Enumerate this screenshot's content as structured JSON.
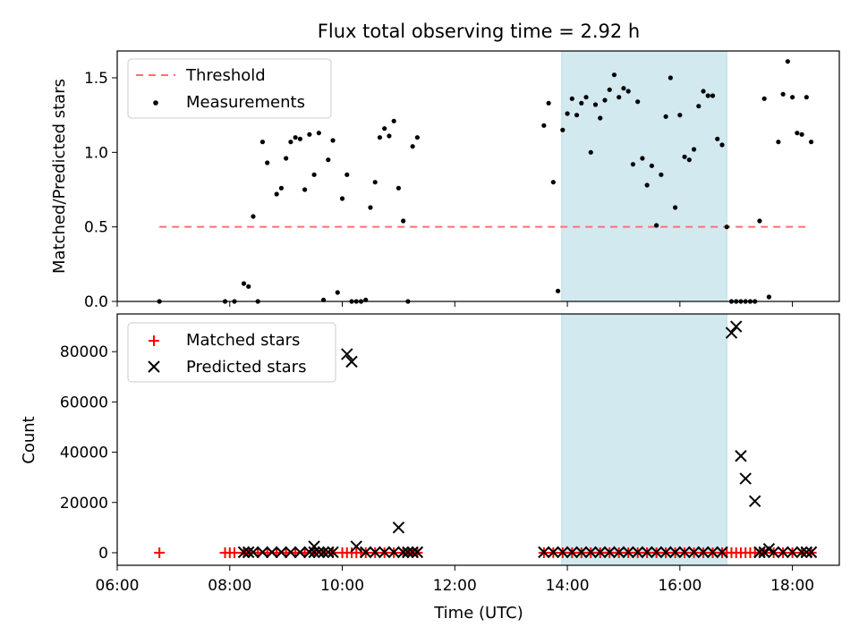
{
  "chart_data": [
    {
      "type": "scatter",
      "title": "Flux total observing time = 2.92 h",
      "xlabel": "",
      "ylabel": "Matched/Predicted stars",
      "xlim": [
        "06:00",
        "18:50"
      ],
      "ylim": [
        0,
        1.68
      ],
      "yticks": [
        "0.0",
        "0.5",
        "1.0",
        "1.5"
      ],
      "legend_position": "upper-left",
      "shaded_interval": {
        "start": "13:54",
        "end": "16:50",
        "color": "#d2e9f0"
      },
      "threshold": {
        "name": "Threshold",
        "value": 0.5,
        "x_start": "06:45",
        "x_end": "18:15",
        "color": "#ff7070"
      },
      "series": [
        {
          "name": "Measurements",
          "color": "#000000",
          "points": [
            [
              "06:45",
              0.0
            ],
            [
              "07:55",
              0.0
            ],
            [
              "08:05",
              0.0
            ],
            [
              "08:15",
              0.12
            ],
            [
              "08:20",
              0.1
            ],
            [
              "08:25",
              0.57
            ],
            [
              "08:30",
              0.0
            ],
            [
              "08:35",
              1.07
            ],
            [
              "08:40",
              0.93
            ],
            [
              "08:50",
              0.72
            ],
            [
              "08:55",
              0.76
            ],
            [
              "09:00",
              0.96
            ],
            [
              "09:05",
              1.07
            ],
            [
              "09:10",
              1.1
            ],
            [
              "09:15",
              1.09
            ],
            [
              "09:20",
              0.75
            ],
            [
              "09:25",
              1.12
            ],
            [
              "09:30",
              0.85
            ],
            [
              "09:35",
              1.13
            ],
            [
              "09:40",
              0.01
            ],
            [
              "09:45",
              0.95
            ],
            [
              "09:50",
              1.08
            ],
            [
              "09:55",
              0.06
            ],
            [
              "10:00",
              0.69
            ],
            [
              "10:05",
              0.85
            ],
            [
              "10:10",
              0.0
            ],
            [
              "10:15",
              0.0
            ],
            [
              "10:20",
              0.0
            ],
            [
              "10:25",
              0.01
            ],
            [
              "10:30",
              0.63
            ],
            [
              "10:35",
              0.8
            ],
            [
              "10:40",
              1.1
            ],
            [
              "10:45",
              1.16
            ],
            [
              "10:50",
              1.11
            ],
            [
              "10:55",
              1.21
            ],
            [
              "11:00",
              0.76
            ],
            [
              "11:05",
              0.54
            ],
            [
              "11:10",
              0.0
            ],
            [
              "11:15",
              1.04
            ],
            [
              "11:20",
              1.1
            ],
            [
              "13:35",
              1.18
            ],
            [
              "13:40",
              1.33
            ],
            [
              "13:45",
              0.8
            ],
            [
              "13:50",
              0.07
            ],
            [
              "13:55",
              1.15
            ],
            [
              "14:00",
              1.26
            ],
            [
              "14:05",
              1.36
            ],
            [
              "14:10",
              1.25
            ],
            [
              "14:15",
              1.33
            ],
            [
              "14:20",
              1.37
            ],
            [
              "14:25",
              1.0
            ],
            [
              "14:30",
              1.32
            ],
            [
              "14:35",
              1.23
            ],
            [
              "14:40",
              1.35
            ],
            [
              "14:45",
              1.42
            ],
            [
              "14:50",
              1.52
            ],
            [
              "14:55",
              1.37
            ],
            [
              "15:00",
              1.43
            ],
            [
              "15:05",
              1.41
            ],
            [
              "15:10",
              0.92
            ],
            [
              "15:15",
              1.34
            ],
            [
              "15:20",
              0.96
            ],
            [
              "15:25",
              0.78
            ],
            [
              "15:30",
              0.91
            ],
            [
              "15:35",
              0.51
            ],
            [
              "15:40",
              0.85
            ],
            [
              "15:45",
              1.24
            ],
            [
              "15:50",
              1.5
            ],
            [
              "15:55",
              0.63
            ],
            [
              "16:00",
              1.25
            ],
            [
              "16:05",
              0.97
            ],
            [
              "16:10",
              0.95
            ],
            [
              "16:15",
              1.02
            ],
            [
              "16:20",
              1.31
            ],
            [
              "16:25",
              1.41
            ],
            [
              "16:30",
              1.38
            ],
            [
              "16:35",
              1.38
            ],
            [
              "16:40",
              1.09
            ],
            [
              "16:45",
              1.05
            ],
            [
              "16:50",
              0.5
            ],
            [
              "16:55",
              0.0
            ],
            [
              "17:00",
              0.0
            ],
            [
              "17:05",
              0.0
            ],
            [
              "17:10",
              0.0
            ],
            [
              "17:15",
              0.0
            ],
            [
              "17:20",
              0.0
            ],
            [
              "17:25",
              0.54
            ],
            [
              "17:30",
              1.36
            ],
            [
              "17:35",
              0.03
            ],
            [
              "17:45",
              1.07
            ],
            [
              "17:50",
              1.39
            ],
            [
              "17:55",
              1.61
            ],
            [
              "18:00",
              1.37
            ],
            [
              "18:05",
              1.13
            ],
            [
              "18:10",
              1.12
            ],
            [
              "18:15",
              1.37
            ],
            [
              "18:20",
              1.07
            ]
          ]
        }
      ]
    },
    {
      "type": "scatter",
      "title": "",
      "xlabel": "Time (UTC)",
      "ylabel": "Count",
      "xlim": [
        "06:00",
        "18:50"
      ],
      "ylim": [
        -5000,
        95000
      ],
      "xticks": [
        "06:00",
        "08:00",
        "10:00",
        "12:00",
        "14:00",
        "16:00",
        "18:00"
      ],
      "yticks": [
        "0",
        "20000",
        "40000",
        "60000",
        "80000"
      ],
      "legend_position": "upper-left",
      "shaded_interval": {
        "start": "13:54",
        "end": "16:50",
        "color": "#d2e9f0"
      },
      "series": [
        {
          "name": "Matched stars",
          "marker": "plus",
          "color": "#ff0000",
          "points": [
            [
              "06:45",
              0
            ],
            [
              "07:55",
              0
            ],
            [
              "08:00",
              0
            ],
            [
              "08:05",
              0
            ],
            [
              "08:15",
              0
            ],
            [
              "08:20",
              0
            ],
            [
              "08:30",
              0
            ],
            [
              "08:40",
              0
            ],
            [
              "08:50",
              0
            ],
            [
              "09:00",
              0
            ],
            [
              "09:10",
              0
            ],
            [
              "09:20",
              0
            ],
            [
              "09:30",
              0
            ],
            [
              "09:40",
              0
            ],
            [
              "09:50",
              0
            ],
            [
              "10:00",
              0
            ],
            [
              "10:05",
              0
            ],
            [
              "10:10",
              0
            ],
            [
              "10:15",
              0
            ],
            [
              "10:20",
              0
            ],
            [
              "10:25",
              0
            ],
            [
              "10:35",
              0
            ],
            [
              "10:45",
              0
            ],
            [
              "10:55",
              0
            ],
            [
              "11:05",
              0
            ],
            [
              "11:10",
              0
            ],
            [
              "11:15",
              0
            ],
            [
              "11:20",
              0
            ],
            [
              "13:35",
              0
            ],
            [
              "13:45",
              0
            ],
            [
              "13:55",
              0
            ],
            [
              "14:05",
              0
            ],
            [
              "14:15",
              0
            ],
            [
              "14:25",
              0
            ],
            [
              "14:35",
              0
            ],
            [
              "14:45",
              0
            ],
            [
              "14:55",
              0
            ],
            [
              "15:05",
              0
            ],
            [
              "15:15",
              0
            ],
            [
              "15:25",
              0
            ],
            [
              "15:35",
              0
            ],
            [
              "15:45",
              0
            ],
            [
              "15:55",
              0
            ],
            [
              "16:05",
              0
            ],
            [
              "16:15",
              0
            ],
            [
              "16:25",
              0
            ],
            [
              "16:35",
              0
            ],
            [
              "16:45",
              0
            ],
            [
              "16:50",
              0
            ],
            [
              "16:55",
              0
            ],
            [
              "17:00",
              0
            ],
            [
              "17:05",
              0
            ],
            [
              "17:10",
              0
            ],
            [
              "17:15",
              0
            ],
            [
              "17:20",
              0
            ],
            [
              "17:25",
              0
            ],
            [
              "17:30",
              0
            ],
            [
              "17:40",
              0
            ],
            [
              "17:50",
              0
            ],
            [
              "18:00",
              0
            ],
            [
              "18:10",
              0
            ],
            [
              "18:20",
              0
            ]
          ]
        },
        {
          "name": "Predicted stars",
          "marker": "x",
          "color": "#000000",
          "points": [
            [
              "08:15",
              200
            ],
            [
              "08:20",
              200
            ],
            [
              "08:25",
              200
            ],
            [
              "08:35",
              200
            ],
            [
              "08:45",
              200
            ],
            [
              "08:55",
              200
            ],
            [
              "09:05",
              200
            ],
            [
              "09:15",
              200
            ],
            [
              "09:25",
              200
            ],
            [
              "09:30",
              200
            ],
            [
              "09:35",
              200
            ],
            [
              "09:40",
              200
            ],
            [
              "09:45",
              200
            ],
            [
              "09:50",
              200
            ],
            [
              "09:30",
              2500
            ],
            [
              "10:05",
              79000
            ],
            [
              "10:10",
              76000
            ],
            [
              "10:15",
              2500
            ],
            [
              "10:25",
              200
            ],
            [
              "10:35",
              200
            ],
            [
              "10:45",
              200
            ],
            [
              "10:55",
              200
            ],
            [
              "11:00",
              10000
            ],
            [
              "11:05",
              200
            ],
            [
              "11:10",
              200
            ],
            [
              "11:15",
              200
            ],
            [
              "11:20",
              200
            ],
            [
              "13:35",
              200
            ],
            [
              "13:45",
              200
            ],
            [
              "13:55",
              200
            ],
            [
              "14:05",
              200
            ],
            [
              "14:15",
              200
            ],
            [
              "14:25",
              200
            ],
            [
              "14:35",
              200
            ],
            [
              "14:45",
              200
            ],
            [
              "14:55",
              200
            ],
            [
              "15:05",
              200
            ],
            [
              "15:15",
              200
            ],
            [
              "15:25",
              200
            ],
            [
              "15:35",
              200
            ],
            [
              "15:45",
              200
            ],
            [
              "15:55",
              200
            ],
            [
              "16:05",
              200
            ],
            [
              "16:15",
              200
            ],
            [
              "16:25",
              200
            ],
            [
              "16:35",
              200
            ],
            [
              "16:45",
              200
            ],
            [
              "16:55",
              87500
            ],
            [
              "17:00",
              90000
            ],
            [
              "17:05",
              38500
            ],
            [
              "17:10",
              29500
            ],
            [
              "17:20",
              20500
            ],
            [
              "17:25",
              200
            ],
            [
              "17:30",
              200
            ],
            [
              "17:35",
              1500
            ],
            [
              "17:40",
              200
            ],
            [
              "17:50",
              200
            ],
            [
              "18:00",
              200
            ],
            [
              "18:10",
              200
            ],
            [
              "18:15",
              200
            ],
            [
              "18:20",
              200
            ]
          ]
        }
      ]
    }
  ]
}
